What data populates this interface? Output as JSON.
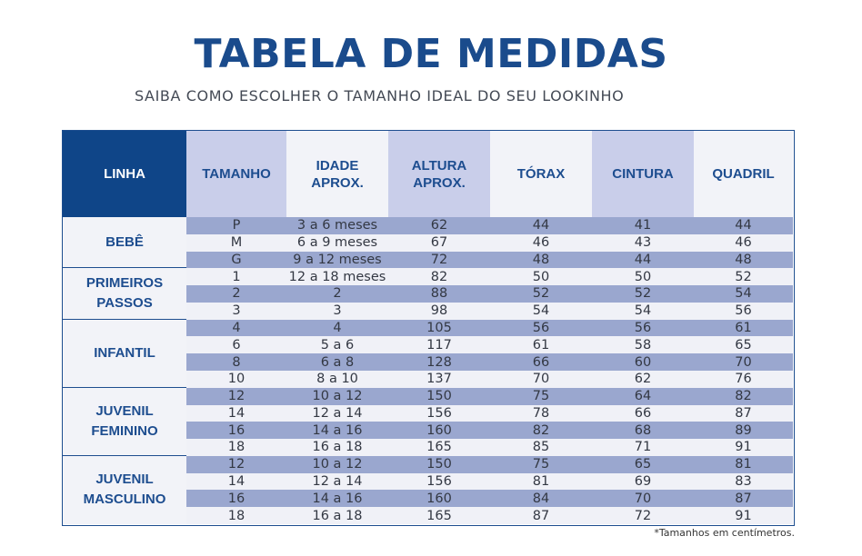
{
  "title": "TABELA DE MEDIDAS",
  "subtitle": "SAIBA COMO ESCOLHER O TAMANHO IDEAL DO SEU LOOKINHO",
  "headers": {
    "linha": "LINHA",
    "tamanho": "TAMANHO",
    "idade_1": "IDADE",
    "idade_2": "APROX.",
    "altura_1": "ALTURA",
    "altura_2": "APROX.",
    "torax": "TÓRAX",
    "cintura": "CINTURA",
    "quadril": "QUADRIL"
  },
  "groups": [
    {
      "line1": "BEBÊ",
      "line2": ""
    },
    {
      "line1": "PRIMEIROS",
      "line2": "PASSOS"
    },
    {
      "line1": "INFANTIL",
      "line2": ""
    },
    {
      "line1": "JUVENIL",
      "line2": "FEMININO"
    },
    {
      "line1": "JUVENIL",
      "line2": "MASCULINO"
    }
  ],
  "rows": [
    [
      "P",
      "3 a 6 meses",
      "62",
      "44",
      "41",
      "44"
    ],
    [
      "M",
      "6 a 9 meses",
      "67",
      "46",
      "43",
      "46"
    ],
    [
      "G",
      "9 a 12 meses",
      "72",
      "48",
      "44",
      "48"
    ],
    [
      "1",
      "12 a 18 meses",
      "82",
      "50",
      "50",
      "52"
    ],
    [
      "2",
      "2",
      "88",
      "52",
      "52",
      "54"
    ],
    [
      "3",
      "3",
      "98",
      "54",
      "54",
      "56"
    ],
    [
      "4",
      "4",
      "105",
      "56",
      "56",
      "61"
    ],
    [
      "6",
      "5 a 6",
      "117",
      "61",
      "58",
      "65"
    ],
    [
      "8",
      "6 a 8",
      "128",
      "66",
      "60",
      "70"
    ],
    [
      "10",
      "8 a 10",
      "137",
      "70",
      "62",
      "76"
    ],
    [
      "12",
      "10 a 12",
      "150",
      "75",
      "64",
      "82"
    ],
    [
      "14",
      "12 a 14",
      "156",
      "78",
      "66",
      "87"
    ],
    [
      "16",
      "14 a 16",
      "160",
      "82",
      "68",
      "89"
    ],
    [
      "18",
      "16 a 18",
      "165",
      "85",
      "71",
      "91"
    ],
    [
      "12",
      "10 a 12",
      "150",
      "75",
      "65",
      "81"
    ],
    [
      "14",
      "12 a 14",
      "156",
      "81",
      "69",
      "83"
    ],
    [
      "16",
      "14 a 16",
      "160",
      "84",
      "70",
      "87"
    ],
    [
      "18",
      "16 a 18",
      "165",
      "87",
      "72",
      "91"
    ]
  ],
  "footnote": "*Tamanhos em centímetros.",
  "colors": {
    "brand_blue": "#0f4588",
    "row_shade": "#9aa7cf",
    "row_light": "#f0f1f7"
  }
}
